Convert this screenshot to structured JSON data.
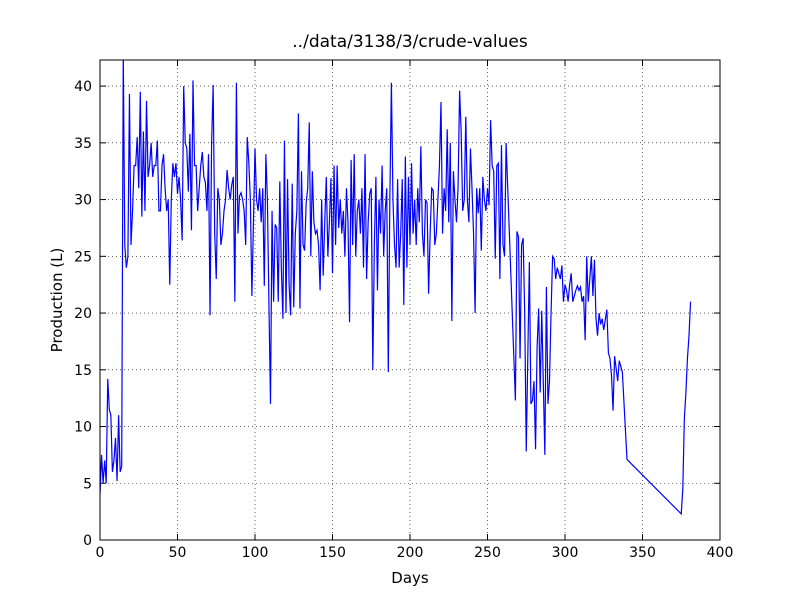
{
  "chart_data": {
    "type": "line",
    "title": "../data/3138/3/crude-values",
    "xlabel": "Days",
    "ylabel": "Production (L)",
    "color": "#0000ff",
    "grid": true,
    "xlim": [
      0,
      400
    ],
    "xticks": [
      0,
      50,
      100,
      150,
      200,
      250,
      300,
      350,
      400
    ],
    "ylim": [
      0,
      42.3
    ],
    "yticks": [
      0,
      5,
      10,
      15,
      20,
      25,
      30,
      35,
      40
    ],
    "x": [
      0,
      1,
      2,
      3,
      4,
      5,
      6,
      7,
      8,
      9,
      10,
      11,
      12,
      13,
      14,
      15,
      16,
      17,
      18,
      19,
      20,
      21,
      22,
      23,
      24,
      25,
      26,
      27,
      28,
      29,
      30,
      31,
      32,
      33,
      34,
      35,
      36,
      37,
      38,
      39,
      40,
      41,
      42,
      43,
      44,
      45,
      46,
      47,
      48,
      49,
      50,
      51,
      52,
      53,
      54,
      55,
      56,
      57,
      58,
      59,
      60,
      61,
      62,
      63,
      64,
      65,
      66,
      67,
      68,
      69,
      70,
      71,
      72,
      73,
      74,
      75,
      76,
      77,
      78,
      79,
      80,
      81,
      82,
      83,
      84,
      85,
      86,
      87,
      88,
      89,
      90,
      91,
      92,
      93,
      94,
      95,
      96,
      97,
      98,
      99,
      100,
      101,
      102,
      103,
      104,
      105,
      106,
      107,
      108,
      109,
      110,
      111,
      112,
      113,
      114,
      115,
      116,
      117,
      118,
      119,
      120,
      121,
      122,
      123,
      124,
      125,
      126,
      127,
      128,
      129,
      130,
      131,
      132,
      133,
      134,
      135,
      136,
      137,
      138,
      139,
      140,
      141,
      142,
      143,
      144,
      145,
      146,
      147,
      148,
      149,
      150,
      151,
      152,
      153,
      154,
      155,
      156,
      157,
      158,
      159,
      160,
      161,
      162,
      163,
      164,
      165,
      166,
      167,
      168,
      169,
      170,
      171,
      172,
      173,
      174,
      175,
      176,
      177,
      178,
      179,
      180,
      181,
      182,
      183,
      184,
      185,
      186,
      187,
      188,
      189,
      190,
      191,
      192,
      193,
      194,
      195,
      196,
      197,
      198,
      199,
      200,
      201,
      202,
      203,
      204,
      205,
      206,
      207,
      208,
      209,
      210,
      211,
      212,
      213,
      214,
      215,
      216,
      217,
      218,
      219,
      220,
      221,
      222,
      223,
      224,
      225,
      226,
      227,
      228,
      229,
      230,
      231,
      232,
      233,
      234,
      235,
      236,
      237,
      238,
      239,
      240,
      241,
      242,
      243,
      244,
      245,
      246,
      247,
      248,
      249,
      250,
      251,
      252,
      253,
      254,
      255,
      256,
      257,
      258,
      259,
      260,
      261,
      262,
      268,
      269,
      270,
      271,
      272,
      273,
      274,
      275,
      277,
      278,
      279,
      280,
      281,
      282,
      283,
      284,
      285,
      287,
      288,
      289,
      290,
      291,
      292,
      293,
      294,
      295,
      297,
      298,
      299,
      300,
      301,
      302,
      303,
      304,
      305,
      307,
      308,
      309,
      310,
      311,
      312,
      313,
      314,
      315,
      317,
      318,
      319,
      320,
      321,
      322,
      323,
      324,
      325,
      327,
      328,
      329,
      330,
      331,
      332,
      334,
      335,
      337,
      340,
      375,
      376,
      377,
      378,
      379,
      380,
      381
    ],
    "values": [
      4,
      7.5,
      5,
      7,
      5,
      14.2,
      11.5,
      11,
      6,
      7,
      9,
      5.2,
      11,
      6,
      6.5,
      43,
      26,
      24,
      25,
      39.3,
      26,
      29,
      33,
      33,
      35.5,
      31,
      39.5,
      28.5,
      36,
      29,
      38.7,
      32,
      33,
      35,
      32,
      33,
      33,
      35.2,
      29,
      29,
      33,
      34,
      31,
      29,
      30,
      22.5,
      30,
      33.2,
      32,
      33.2,
      30.5,
      32,
      30,
      26.4,
      40,
      35,
      34.5,
      30.7,
      35.8,
      27.3,
      40.5,
      33,
      33,
      29,
      31,
      33,
      34.2,
      32,
      31.5,
      29,
      34,
      19.8,
      35,
      40.1,
      27,
      23,
      31,
      30,
      26,
      27,
      29,
      30,
      32.6,
      31,
      30,
      31.3,
      32,
      21,
      40.3,
      27,
      30.3,
      30.6,
      30,
      29,
      26,
      35.5,
      33.3,
      30,
      21.5,
      28,
      34.5,
      30,
      29,
      31,
      28,
      31,
      22.4,
      34,
      30,
      20.7,
      12,
      29,
      21,
      27.8,
      27.5,
      21,
      31.6,
      24,
      19.5,
      35.2,
      20,
      31.8,
      22.5,
      19.8,
      31.4,
      20.5,
      27,
      29,
      37.6,
      20.4,
      32.5,
      26,
      25.5,
      29.7,
      31,
      36.8,
      25,
      32.5,
      28,
      27,
      27.3,
      26,
      22,
      30,
      23.3,
      28,
      32,
      25,
      28,
      31.9,
      23.5,
      33,
      26,
      33,
      27.5,
      30,
      27,
      29,
      25,
      31,
      28,
      19.2,
      33.5,
      26,
      34,
      25,
      29,
      30,
      27,
      31,
      24,
      34,
      23,
      28,
      30.5,
      31,
      15,
      26,
      32,
      22,
      30,
      27,
      33,
      25,
      29,
      31,
      14.8,
      30,
      40.3,
      30,
      26,
      24,
      31.8,
      24,
      27,
      31.8,
      20.7,
      33.8,
      24,
      32,
      26,
      33.2,
      27,
      30,
      26,
      31,
      28,
      34.7,
      27,
      25,
      30,
      29.7,
      21.7,
      27,
      31,
      30.8,
      26,
      27,
      30,
      33,
      38.6,
      27,
      31,
      29,
      36.2,
      28,
      35,
      19.3,
      32.5,
      30,
      28,
      31,
      39.6,
      36,
      29,
      30,
      37.3,
      30,
      28,
      34.5,
      31,
      27,
      20,
      31,
      28.8,
      31,
      25.5,
      32,
      30,
      29,
      31,
      29.5,
      37,
      33,
      32.5,
      24.8,
      33,
      33.2,
      23,
      34.8,
      26,
      25,
      35,
      12.3,
      27.2,
      26.7,
      16,
      26,
      26.6,
      20,
      7.8,
      24.5,
      12,
      12.3,
      14,
      8,
      17,
      20.4,
      13,
      20.2,
      7.5,
      22.3,
      12,
      14,
      20,
      25,
      24.8,
      23,
      24,
      23,
      24.2,
      21,
      22.5,
      22,
      21,
      22.5,
      23.5,
      21,
      22,
      22.4,
      22,
      22.3,
      21,
      21.5,
      17.6,
      25,
      21,
      25,
      21.5,
      24.7,
      19.5,
      18,
      20,
      19,
      19.5,
      18.5,
      20.3,
      16.5,
      16,
      14.5,
      11.4,
      16.2,
      14,
      15.8,
      14.8,
      7.1,
      2.3,
      4.5,
      10.7,
      13,
      16,
      18,
      21
    ]
  }
}
